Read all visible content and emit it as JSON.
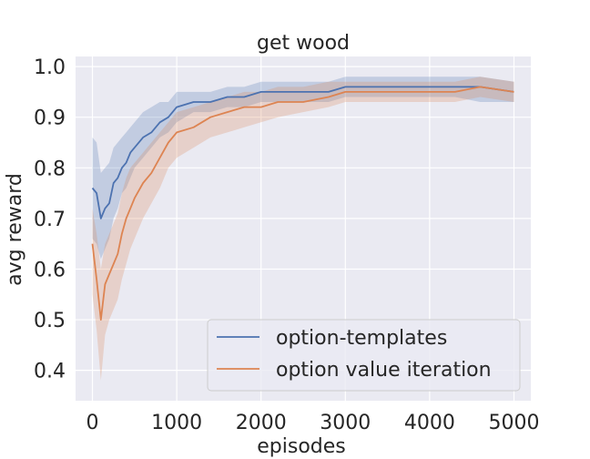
{
  "chart_data": {
    "type": "line",
    "title": "get wood",
    "xlabel": "episodes",
    "ylabel": "avg reward",
    "xlim": [
      -200,
      5200
    ],
    "ylim": [
      0.34,
      1.02
    ],
    "xticks": [
      "0",
      "1000",
      "2000",
      "3000",
      "4000",
      "5000"
    ],
    "xtick_values": [
      0,
      1000,
      2000,
      3000,
      4000,
      5000
    ],
    "yticks": [
      "0.4",
      "0.5",
      "0.6",
      "0.7",
      "0.8",
      "0.9",
      "1.0"
    ],
    "ytick_values": [
      0.4,
      0.5,
      0.6,
      0.7,
      0.8,
      0.9,
      1.0
    ],
    "grid": true,
    "legend_position": "bottom-right",
    "series": [
      {
        "name": "option-templates",
        "color": "#4c72b0",
        "x": [
          0,
          50,
          100,
          150,
          200,
          250,
          300,
          350,
          400,
          450,
          500,
          600,
          700,
          800,
          900,
          1000,
          1200,
          1400,
          1600,
          1800,
          2000,
          2200,
          2500,
          2800,
          3000,
          3300,
          3600,
          4000,
          4300,
          4600,
          5000
        ],
        "y": [
          0.76,
          0.75,
          0.7,
          0.72,
          0.73,
          0.77,
          0.78,
          0.8,
          0.81,
          0.83,
          0.84,
          0.86,
          0.87,
          0.89,
          0.9,
          0.92,
          0.93,
          0.93,
          0.94,
          0.94,
          0.95,
          0.95,
          0.95,
          0.95,
          0.96,
          0.96,
          0.96,
          0.96,
          0.96,
          0.96,
          0.95
        ],
        "lower": [
          0.66,
          0.65,
          0.62,
          0.64,
          0.66,
          0.7,
          0.72,
          0.75,
          0.76,
          0.78,
          0.8,
          0.82,
          0.84,
          0.86,
          0.87,
          0.89,
          0.91,
          0.91,
          0.92,
          0.92,
          0.93,
          0.93,
          0.93,
          0.93,
          0.94,
          0.94,
          0.94,
          0.94,
          0.94,
          0.93,
          0.93
        ],
        "upper": [
          0.86,
          0.85,
          0.79,
          0.8,
          0.81,
          0.84,
          0.85,
          0.86,
          0.87,
          0.88,
          0.89,
          0.91,
          0.92,
          0.93,
          0.93,
          0.95,
          0.95,
          0.95,
          0.96,
          0.96,
          0.97,
          0.97,
          0.97,
          0.97,
          0.98,
          0.98,
          0.98,
          0.98,
          0.98,
          0.98,
          0.97
        ]
      },
      {
        "name": "option value iteration",
        "color": "#dd8452",
        "x": [
          0,
          50,
          100,
          150,
          200,
          250,
          300,
          350,
          400,
          450,
          500,
          600,
          700,
          800,
          900,
          1000,
          1200,
          1400,
          1600,
          1800,
          2000,
          2200,
          2500,
          2800,
          3000,
          3300,
          3600,
          4000,
          4300,
          4600,
          5000
        ],
        "y": [
          0.65,
          0.58,
          0.5,
          0.57,
          0.59,
          0.61,
          0.63,
          0.67,
          0.7,
          0.72,
          0.74,
          0.77,
          0.79,
          0.82,
          0.85,
          0.87,
          0.88,
          0.9,
          0.91,
          0.92,
          0.92,
          0.93,
          0.93,
          0.94,
          0.95,
          0.95,
          0.95,
          0.95,
          0.95,
          0.96,
          0.95
        ],
        "lower": [
          0.55,
          0.48,
          0.38,
          0.47,
          0.5,
          0.52,
          0.54,
          0.58,
          0.61,
          0.64,
          0.66,
          0.7,
          0.73,
          0.76,
          0.8,
          0.82,
          0.84,
          0.86,
          0.87,
          0.88,
          0.89,
          0.9,
          0.91,
          0.92,
          0.93,
          0.93,
          0.93,
          0.93,
          0.93,
          0.94,
          0.93
        ],
        "upper": [
          0.72,
          0.67,
          0.6,
          0.65,
          0.67,
          0.69,
          0.71,
          0.75,
          0.78,
          0.8,
          0.81,
          0.83,
          0.85,
          0.87,
          0.89,
          0.91,
          0.92,
          0.93,
          0.94,
          0.95,
          0.95,
          0.96,
          0.96,
          0.97,
          0.97,
          0.97,
          0.97,
          0.97,
          0.97,
          0.98,
          0.97
        ]
      }
    ]
  }
}
